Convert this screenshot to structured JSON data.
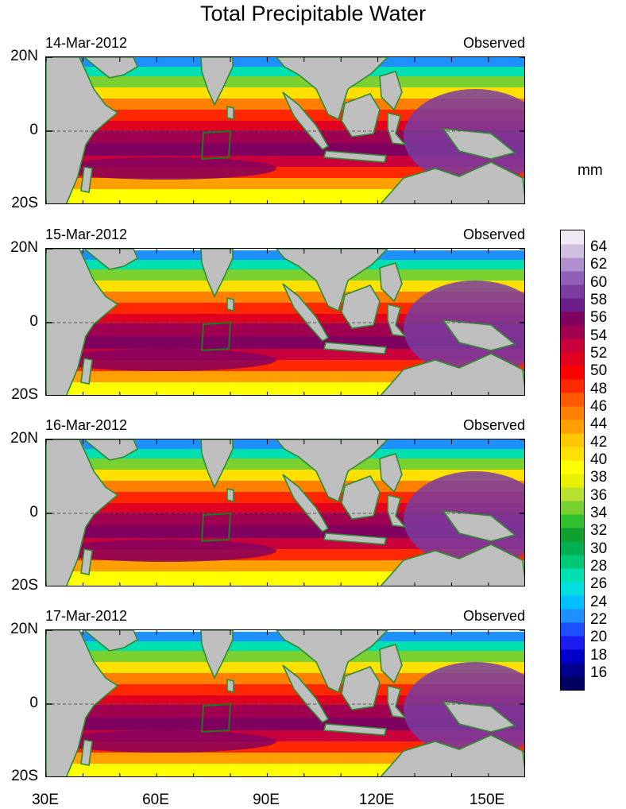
{
  "title": "Total Precipitable Water",
  "unit": "mm",
  "panels": [
    {
      "date": "14-Mar-2012",
      "label": "Observed"
    },
    {
      "date": "15-Mar-2012",
      "label": "Observed"
    },
    {
      "date": "16-Mar-2012",
      "label": "Observed"
    },
    {
      "date": "17-Mar-2012",
      "label": "Observed"
    }
  ],
  "lat_labels": [
    "20N",
    "0",
    "20S"
  ],
  "lon_labels": [
    "30E",
    "60E",
    "90E",
    "120E",
    "150E"
  ],
  "colorbar_labels": [
    "64",
    "62",
    "60",
    "58",
    "56",
    "54",
    "52",
    "50",
    "48",
    "46",
    "44",
    "42",
    "40",
    "38",
    "36",
    "34",
    "32",
    "30",
    "28",
    "26",
    "24",
    "22",
    "20",
    "18",
    "16"
  ],
  "colors": {
    "land": "#bebebe",
    "coast": "#2e8b2e",
    "scale": [
      "#000060",
      "#00008b",
      "#0000c8",
      "#1c1cf0",
      "#1e50ff",
      "#1e90ff",
      "#00bfff",
      "#00e0e0",
      "#00dfb0",
      "#00c878",
      "#00b050",
      "#10a030",
      "#30c030",
      "#7ad030",
      "#b8e030",
      "#e8f000",
      "#ffff00",
      "#ffe000",
      "#ffc800",
      "#ffa000",
      "#ff8000",
      "#ff5a00",
      "#ff2800",
      "#ff0000",
      "#e00020",
      "#c8003c",
      "#a00050",
      "#800060",
      "#6a1e8a",
      "#7a3ca0",
      "#9060b8",
      "#b090cc",
      "#d0c0e0",
      "#f0e8f4"
    ]
  }
}
